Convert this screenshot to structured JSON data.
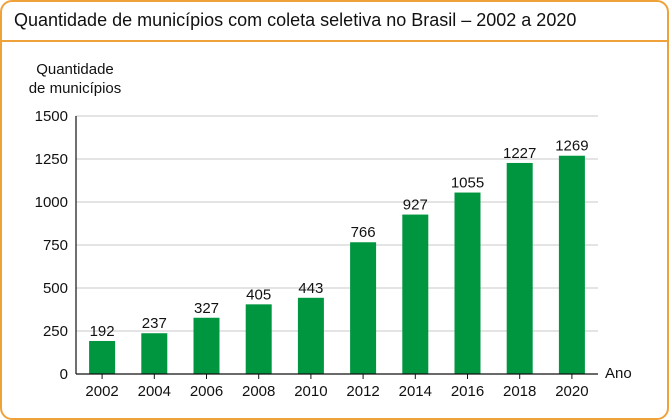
{
  "title": "Quantidade de municípios com coleta seletiva no Brasil – 2002 a 2020",
  "chart_data": {
    "type": "bar",
    "title": "Quantidade de municípios com coleta seletiva no Brasil – 2002 a 2020",
    "ylabel_line1": "Quantidade",
    "ylabel_line2": "de municípios",
    "xlabel": "Ano",
    "categories": [
      "2002",
      "2004",
      "2006",
      "2008",
      "2010",
      "2012",
      "2014",
      "2016",
      "2018",
      "2020"
    ],
    "values": [
      192,
      237,
      327,
      405,
      443,
      766,
      927,
      1055,
      1227,
      1269
    ],
    "ylim": [
      0,
      1500
    ],
    "yticks": [
      0,
      250,
      500,
      750,
      1000,
      1250,
      1500
    ],
    "grid": true,
    "colors": {
      "bar": "#00963f",
      "frame": "#f0a23a",
      "grid": "#c8c8c8"
    }
  }
}
